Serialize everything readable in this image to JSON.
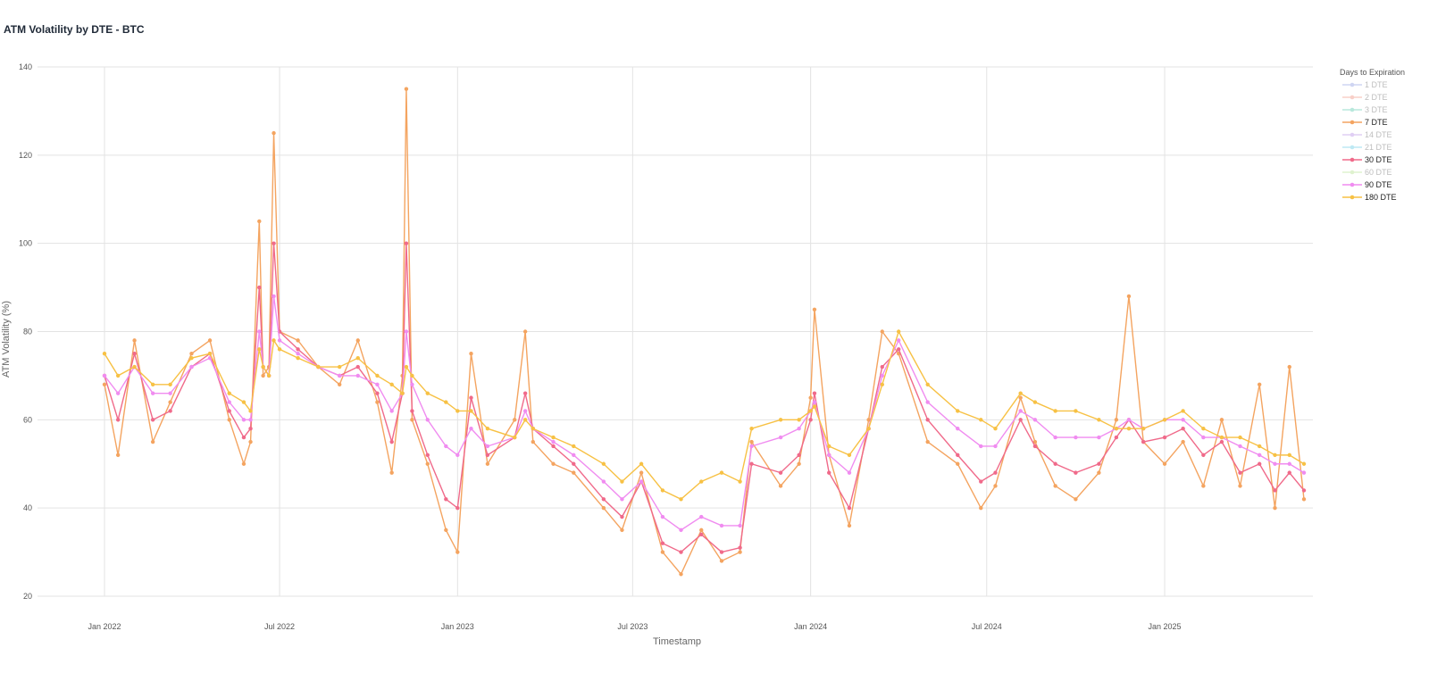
{
  "chart_data": {
    "type": "line",
    "title": "ATM Volatility by DTE - BTC",
    "xlabel": "Timestamp",
    "ylabel": "ATM Volatility (%)",
    "ylim": [
      20,
      140
    ],
    "y_ticks": [
      20,
      40,
      60,
      80,
      100,
      120,
      140
    ],
    "x_range": [
      "2022-01-01",
      "2025-05-25"
    ],
    "x_ticks": [
      {
        "date": "2022-01-01",
        "label": "Jan 2022"
      },
      {
        "date": "2022-07-01",
        "label": "Jul 2022"
      },
      {
        "date": "2023-01-01",
        "label": "Jan 2023"
      },
      {
        "date": "2023-07-01",
        "label": "Jul 2023"
      },
      {
        "date": "2024-01-01",
        "label": "Jan 2024"
      },
      {
        "date": "2024-07-01",
        "label": "Jul 2024"
      },
      {
        "date": "2025-01-01",
        "label": "Jan 2025"
      }
    ],
    "grid": true,
    "legend_title": "Days to Expiration",
    "legend_position": "right",
    "series": [
      {
        "name": "1 DTE",
        "color": "#a8b4e8",
        "visible": false,
        "values": []
      },
      {
        "name": "2 DTE",
        "color": "#f4a99c",
        "visible": false,
        "values": []
      },
      {
        "name": "3 DTE",
        "color": "#7fd6c0",
        "visible": false,
        "values": []
      },
      {
        "name": "7 DTE",
        "color": "#f4a460",
        "visible": true,
        "x": [
          "2022-01-01",
          "2022-01-15",
          "2022-02-01",
          "2022-02-20",
          "2022-03-10",
          "2022-04-01",
          "2022-04-20",
          "2022-05-10",
          "2022-05-25",
          "2022-06-01",
          "2022-06-10",
          "2022-06-14",
          "2022-06-20",
          "2022-06-25",
          "2022-07-01",
          "2022-07-20",
          "2022-08-10",
          "2022-09-01",
          "2022-09-20",
          "2022-10-10",
          "2022-10-25",
          "2022-11-05",
          "2022-11-09",
          "2022-11-15",
          "2022-12-01",
          "2022-12-20",
          "2023-01-01",
          "2023-01-15",
          "2023-02-01",
          "2023-03-01",
          "2023-03-12",
          "2023-03-20",
          "2023-04-10",
          "2023-05-01",
          "2023-06-01",
          "2023-06-20",
          "2023-07-10",
          "2023-08-01",
          "2023-08-20",
          "2023-09-10",
          "2023-10-01",
          "2023-10-20",
          "2023-11-01",
          "2023-12-01",
          "2023-12-20",
          "2024-01-01",
          "2024-01-05",
          "2024-01-20",
          "2024-02-10",
          "2024-03-01",
          "2024-03-15",
          "2024-04-01",
          "2024-05-01",
          "2024-06-01",
          "2024-06-25",
          "2024-07-10",
          "2024-08-05",
          "2024-08-20",
          "2024-09-10",
          "2024-10-01",
          "2024-10-25",
          "2024-11-12",
          "2024-11-25",
          "2024-12-10",
          "2025-01-01",
          "2025-01-20",
          "2025-02-10",
          "2025-03-01",
          "2025-03-20",
          "2025-04-09",
          "2025-04-25",
          "2025-05-10",
          "2025-05-25"
        ],
        "values": [
          68,
          52,
          78,
          55,
          64,
          75,
          78,
          60,
          50,
          55,
          105,
          70,
          72,
          125,
          80,
          78,
          72,
          68,
          78,
          64,
          48,
          70,
          135,
          60,
          50,
          35,
          30,
          75,
          50,
          60,
          80,
          55,
          50,
          48,
          40,
          35,
          48,
          30,
          25,
          35,
          28,
          30,
          55,
          45,
          50,
          65,
          85,
          52,
          36,
          60,
          80,
          75,
          55,
          50,
          40,
          45,
          65,
          55,
          45,
          42,
          48,
          60,
          88,
          55,
          50,
          55,
          45,
          60,
          45,
          68,
          40,
          72,
          42
        ]
      },
      {
        "name": "14 DTE",
        "color": "#c8a8ec",
        "visible": false,
        "values": []
      },
      {
        "name": "21 DTE",
        "color": "#8ad8ec",
        "visible": false,
        "values": []
      },
      {
        "name": "30 DTE",
        "color": "#f06a8a",
        "visible": true,
        "x": [
          "2022-01-01",
          "2022-01-15",
          "2022-02-01",
          "2022-02-20",
          "2022-03-10",
          "2022-04-01",
          "2022-04-20",
          "2022-05-10",
          "2022-05-25",
          "2022-06-01",
          "2022-06-10",
          "2022-06-14",
          "2022-06-20",
          "2022-06-25",
          "2022-07-01",
          "2022-07-20",
          "2022-08-10",
          "2022-09-01",
          "2022-09-20",
          "2022-10-10",
          "2022-10-25",
          "2022-11-05",
          "2022-11-09",
          "2022-11-15",
          "2022-12-01",
          "2022-12-20",
          "2023-01-01",
          "2023-01-15",
          "2023-02-01",
          "2023-03-01",
          "2023-03-12",
          "2023-03-20",
          "2023-04-10",
          "2023-05-01",
          "2023-06-01",
          "2023-06-20",
          "2023-07-10",
          "2023-08-01",
          "2023-08-20",
          "2023-09-10",
          "2023-10-01",
          "2023-10-20",
          "2023-11-01",
          "2023-12-01",
          "2023-12-20",
          "2024-01-01",
          "2024-01-05",
          "2024-01-20",
          "2024-02-10",
          "2024-03-01",
          "2024-03-15",
          "2024-04-01",
          "2024-05-01",
          "2024-06-01",
          "2024-06-25",
          "2024-07-10",
          "2024-08-05",
          "2024-08-20",
          "2024-09-10",
          "2024-10-01",
          "2024-10-25",
          "2024-11-12",
          "2024-11-25",
          "2024-12-10",
          "2025-01-01",
          "2025-01-20",
          "2025-02-10",
          "2025-03-01",
          "2025-03-20",
          "2025-04-09",
          "2025-04-25",
          "2025-05-10",
          "2025-05-25"
        ],
        "values": [
          70,
          60,
          75,
          60,
          62,
          72,
          75,
          62,
          56,
          58,
          90,
          72,
          70,
          100,
          80,
          76,
          72,
          70,
          72,
          66,
          55,
          66,
          100,
          62,
          52,
          42,
          40,
          65,
          52,
          56,
          66,
          58,
          54,
          50,
          42,
          38,
          46,
          32,
          30,
          34,
          30,
          31,
          50,
          48,
          52,
          60,
          66,
          48,
          40,
          58,
          72,
          76,
          60,
          52,
          46,
          48,
          60,
          54,
          50,
          48,
          50,
          56,
          60,
          55,
          56,
          58,
          52,
          55,
          48,
          50,
          44,
          48,
          44
        ]
      },
      {
        "name": "60 DTE",
        "color": "#c6e8a8",
        "visible": false,
        "values": []
      },
      {
        "name": "90 DTE",
        "color": "#f08cf0",
        "visible": true,
        "x": [
          "2022-01-01",
          "2022-01-15",
          "2022-02-01",
          "2022-02-20",
          "2022-03-10",
          "2022-04-01",
          "2022-04-20",
          "2022-05-10",
          "2022-05-25",
          "2022-06-01",
          "2022-06-10",
          "2022-06-14",
          "2022-06-20",
          "2022-06-25",
          "2022-07-01",
          "2022-07-20",
          "2022-08-10",
          "2022-09-01",
          "2022-09-20",
          "2022-10-10",
          "2022-10-25",
          "2022-11-05",
          "2022-11-09",
          "2022-11-15",
          "2022-12-01",
          "2022-12-20",
          "2023-01-01",
          "2023-01-15",
          "2023-02-01",
          "2023-03-01",
          "2023-03-12",
          "2023-03-20",
          "2023-04-10",
          "2023-05-01",
          "2023-06-01",
          "2023-06-20",
          "2023-07-10",
          "2023-08-01",
          "2023-08-20",
          "2023-09-10",
          "2023-10-01",
          "2023-10-20",
          "2023-11-01",
          "2023-12-01",
          "2023-12-20",
          "2024-01-01",
          "2024-01-05",
          "2024-01-20",
          "2024-02-10",
          "2024-03-01",
          "2024-03-15",
          "2024-04-01",
          "2024-05-01",
          "2024-06-01",
          "2024-06-25",
          "2024-07-10",
          "2024-08-05",
          "2024-08-20",
          "2024-09-10",
          "2024-10-01",
          "2024-10-25",
          "2024-11-12",
          "2024-11-25",
          "2024-12-10",
          "2025-01-01",
          "2025-01-20",
          "2025-02-10",
          "2025-03-01",
          "2025-03-20",
          "2025-04-09",
          "2025-04-25",
          "2025-05-10",
          "2025-05-25"
        ],
        "values": [
          70,
          66,
          72,
          66,
          66,
          72,
          74,
          64,
          60,
          60,
          80,
          72,
          70,
          88,
          78,
          75,
          72,
          70,
          70,
          68,
          62,
          66,
          80,
          68,
          60,
          54,
          52,
          58,
          54,
          56,
          62,
          58,
          55,
          52,
          46,
          42,
          46,
          38,
          35,
          38,
          36,
          36,
          54,
          56,
          58,
          62,
          64,
          52,
          48,
          58,
          70,
          78,
          64,
          58,
          54,
          54,
          62,
          60,
          56,
          56,
          56,
          58,
          60,
          58,
          60,
          60,
          56,
          56,
          54,
          52,
          50,
          50,
          48
        ]
      },
      {
        "name": "180 DTE",
        "color": "#f7c144",
        "visible": true,
        "x": [
          "2022-01-01",
          "2022-01-15",
          "2022-02-01",
          "2022-02-20",
          "2022-03-10",
          "2022-04-01",
          "2022-04-20",
          "2022-05-10",
          "2022-05-25",
          "2022-06-01",
          "2022-06-10",
          "2022-06-14",
          "2022-06-20",
          "2022-06-25",
          "2022-07-01",
          "2022-07-20",
          "2022-08-10",
          "2022-09-01",
          "2022-09-20",
          "2022-10-10",
          "2022-10-25",
          "2022-11-05",
          "2022-11-09",
          "2022-11-15",
          "2022-12-01",
          "2022-12-20",
          "2023-01-01",
          "2023-01-15",
          "2023-02-01",
          "2023-03-01",
          "2023-03-12",
          "2023-03-20",
          "2023-04-10",
          "2023-05-01",
          "2023-06-01",
          "2023-06-20",
          "2023-07-10",
          "2023-08-01",
          "2023-08-20",
          "2023-09-10",
          "2023-10-01",
          "2023-10-20",
          "2023-11-01",
          "2023-12-01",
          "2023-12-20",
          "2024-01-01",
          "2024-01-05",
          "2024-01-20",
          "2024-02-10",
          "2024-03-01",
          "2024-03-15",
          "2024-04-01",
          "2024-05-01",
          "2024-06-01",
          "2024-06-25",
          "2024-07-10",
          "2024-08-05",
          "2024-08-20",
          "2024-09-10",
          "2024-10-01",
          "2024-10-25",
          "2024-11-12",
          "2024-11-25",
          "2024-12-10",
          "2025-01-01",
          "2025-01-20",
          "2025-02-10",
          "2025-03-01",
          "2025-03-20",
          "2025-04-09",
          "2025-04-25",
          "2025-05-10",
          "2025-05-25"
        ],
        "values": [
          75,
          70,
          72,
          68,
          68,
          74,
          75,
          66,
          64,
          62,
          76,
          72,
          70,
          78,
          76,
          74,
          72,
          72,
          74,
          70,
          68,
          66,
          72,
          70,
          66,
          64,
          62,
          62,
          58,
          56,
          60,
          58,
          56,
          54,
          50,
          46,
          50,
          44,
          42,
          46,
          48,
          46,
          58,
          60,
          60,
          62,
          63,
          54,
          52,
          58,
          68,
          80,
          68,
          62,
          60,
          58,
          66,
          64,
          62,
          62,
          60,
          58,
          58,
          58,
          60,
          62,
          58,
          56,
          56,
          54,
          52,
          52,
          50
        ]
      }
    ]
  }
}
